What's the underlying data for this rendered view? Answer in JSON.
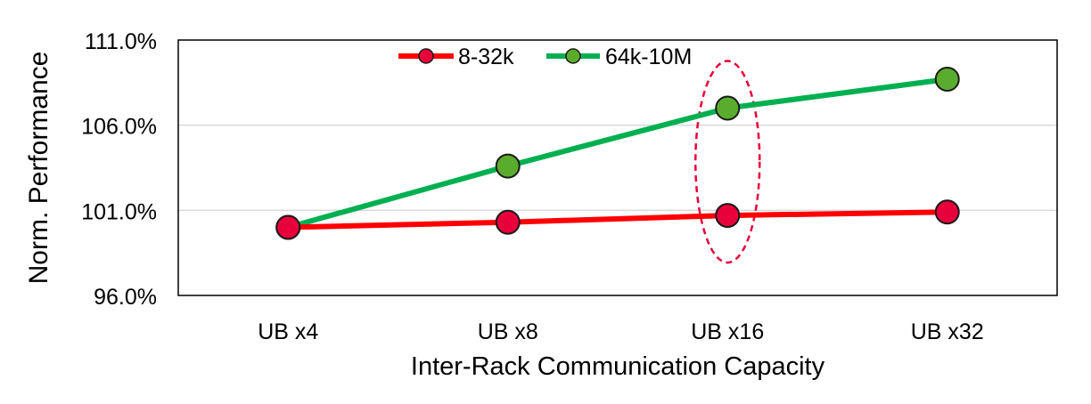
{
  "chart_data": {
    "type": "line",
    "title": "",
    "xlabel": "Inter-Rack Communication Capacity",
    "ylabel": "Norm. Performance",
    "categories": [
      "UB x4",
      "UB x8",
      "UB x16",
      "UB x32"
    ],
    "ylim": [
      96.0,
      111.0
    ],
    "yticks": [
      96.0,
      101.0,
      106.0,
      111.0
    ],
    "ytick_labels": [
      "96.0%",
      "101.0%",
      "106.0%",
      "111.0%"
    ],
    "grid": "horizontal",
    "legend_position": "top-center",
    "series": [
      {
        "name": "8-32k",
        "color": "#ff0000",
        "marker_color": "#e8003a",
        "values": [
          100.0,
          100.3,
          100.7,
          100.9
        ]
      },
      {
        "name": "64k-10M",
        "color": "#00b050",
        "marker_color": "#5aad2c",
        "values": [
          100.0,
          103.6,
          107.0,
          108.7
        ]
      }
    ],
    "annotation": {
      "shape": "dashed-ellipse",
      "category": "UB x16",
      "color": "#e8003a"
    }
  }
}
